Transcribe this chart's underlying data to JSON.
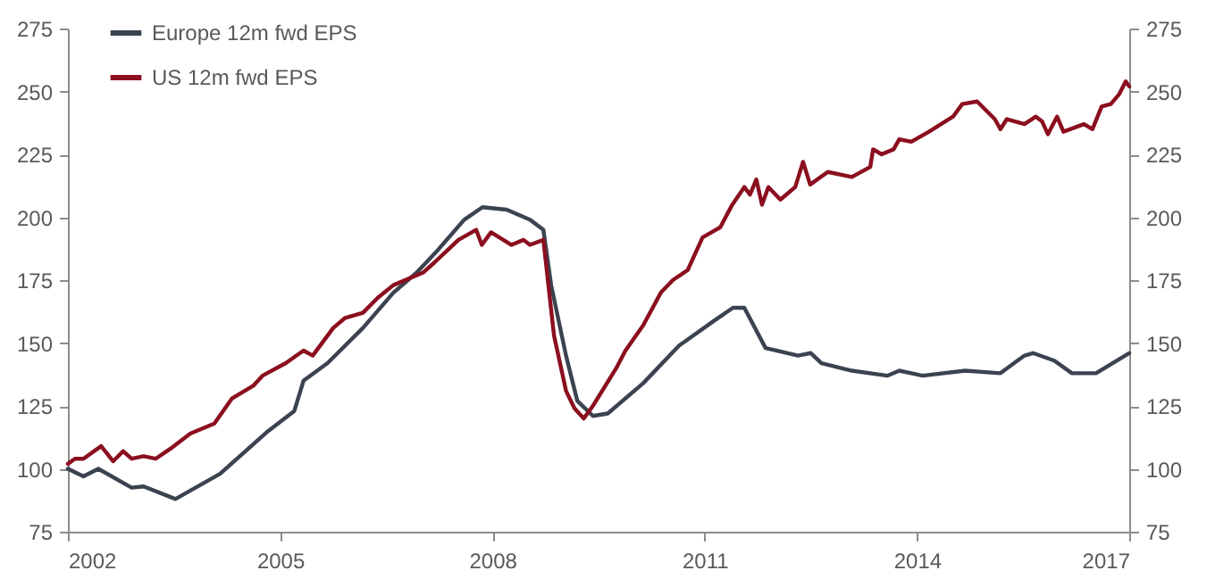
{
  "chart_data": {
    "type": "line",
    "x": [
      2002.0,
      2002.22,
      2002.43,
      2002.9,
      2003.07,
      2003.52,
      2004.15,
      2004.83,
      2005.2,
      2005.33,
      2005.67,
      2006.17,
      2006.6,
      2006.93,
      2007.23,
      2007.6,
      2007.86,
      2008.2,
      2008.53,
      2008.72,
      2008.83,
      2009.04,
      2009.2,
      2009.42,
      2009.63,
      2010.13,
      2010.64,
      2011.14,
      2011.4,
      2011.56,
      2011.86,
      2012.32,
      2012.5,
      2012.65,
      2013.08,
      2013.58,
      2013.75,
      2014.08,
      2014.68,
      2015.18,
      2015.52,
      2015.64,
      2015.94,
      2016.19,
      2016.53,
      2017.0
    ],
    "series": [
      {
        "name": "Europe 12m fwd EPS",
        "color": "#3b4350",
        "values": [
          100,
          97,
          100,
          92.5,
          93,
          88,
          98,
          115,
          123,
          135,
          142,
          156,
          170,
          178,
          187,
          199,
          204,
          203,
          199,
          195,
          173,
          145,
          127,
          121,
          122,
          134,
          149,
          159,
          164,
          164,
          148,
          145,
          146,
          142,
          139,
          137,
          139,
          137,
          139,
          138,
          145,
          146,
          143,
          138,
          138,
          146
        ]
      },
      {
        "name": "US 12m fwd EPS",
        "color": "#8b0f1f",
        "x": [
          2002.0,
          2002.1,
          2002.22,
          2002.47,
          2002.64,
          2002.78,
          2002.9,
          2003.07,
          2003.24,
          2003.45,
          2003.73,
          2004.07,
          2004.32,
          2004.62,
          2004.75,
          2005.08,
          2005.33,
          2005.46,
          2005.75,
          2005.92,
          2006.17,
          2006.38,
          2006.6,
          2007.02,
          2007.18,
          2007.52,
          2007.77,
          2007.85,
          2007.98,
          2008.27,
          2008.44,
          2008.53,
          2008.72,
          2008.87,
          2009.04,
          2009.16,
          2009.29,
          2009.42,
          2009.75,
          2009.88,
          2010.13,
          2010.38,
          2010.55,
          2010.76,
          2010.97,
          2011.22,
          2011.39,
          2011.56,
          2011.64,
          2011.73,
          2011.81,
          2011.9,
          2012.07,
          2012.28,
          2012.39,
          2012.49,
          2012.74,
          2013.08,
          2013.34,
          2013.38,
          2013.5,
          2013.67,
          2013.75,
          2013.92,
          2014.17,
          2014.51,
          2014.64,
          2014.85,
          2015.1,
          2015.18,
          2015.27,
          2015.52,
          2015.68,
          2015.77,
          2015.85,
          2015.98,
          2016.07,
          2016.36,
          2016.48,
          2016.61,
          2016.74,
          2016.86,
          2016.95,
          2017.0
        ],
        "values": [
          102,
          104,
          104,
          109,
          103,
          107,
          104,
          105,
          104,
          108,
          114,
          118,
          128,
          133,
          137,
          142,
          147,
          145,
          156,
          160,
          162,
          168,
          173,
          178,
          182,
          191,
          195,
          189,
          194,
          189,
          191,
          189,
          191,
          153,
          131,
          124,
          120,
          125,
          140,
          147,
          157,
          170,
          175,
          179,
          192,
          196,
          205,
          212,
          209,
          215,
          205,
          212,
          207,
          212,
          222,
          213,
          218,
          216,
          220,
          227,
          225,
          227,
          231,
          230,
          234,
          240,
          245,
          246,
          239,
          235,
          239,
          237,
          240,
          238,
          233,
          240,
          234,
          237,
          235,
          244,
          245,
          249,
          254,
          252
        ]
      }
    ],
    "xlim": [
      2002,
      2017
    ],
    "xticks": [
      2002,
      2005,
      2008,
      2011,
      2014,
      2017
    ],
    "ylim": [
      75,
      275
    ],
    "yticks": [
      75,
      100,
      125,
      150,
      175,
      200,
      225,
      250,
      275
    ],
    "y2lim": [
      75,
      275
    ],
    "y2ticks": [
      75,
      100,
      125,
      150,
      175,
      200,
      225,
      250,
      275
    ],
    "grid": false,
    "legend": "top left",
    "line_style": "solid",
    "marker": "none"
  }
}
